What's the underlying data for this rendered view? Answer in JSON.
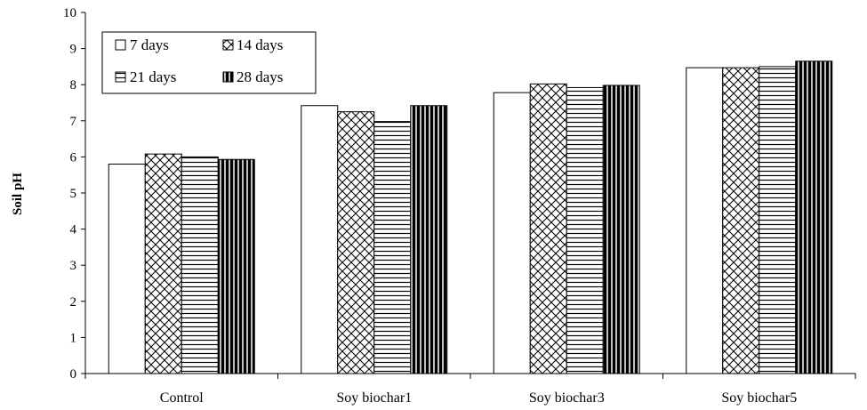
{
  "chart_data": {
    "type": "bar",
    "title": "",
    "xlabel": "",
    "ylabel": "Soil pH",
    "ylim": [
      0,
      10
    ],
    "yticks": [
      "0",
      "1",
      "2",
      "3",
      "4",
      "5",
      "6",
      "7",
      "8",
      "9",
      "10"
    ],
    "grid": false,
    "legend_position": "top-left",
    "categories": [
      "Control",
      "Soy biochar1",
      "Soy biochar3",
      "Soy biochar5"
    ],
    "series": [
      {
        "name": "7 days",
        "pattern": "blank",
        "values": [
          5.8,
          7.42,
          7.78,
          8.47
        ]
      },
      {
        "name": "14 days",
        "pattern": "crosshatch",
        "values": [
          6.08,
          7.25,
          8.02,
          8.47
        ]
      },
      {
        "name": "21 days",
        "pattern": "horizontal",
        "values": [
          6.0,
          6.98,
          7.92,
          8.5
        ]
      },
      {
        "name": "28 days",
        "pattern": "vertical",
        "values": [
          5.93,
          7.42,
          7.98,
          8.65
        ]
      }
    ],
    "colors": {
      "bar_fill": "#ffffff",
      "stroke": "#000000"
    }
  }
}
